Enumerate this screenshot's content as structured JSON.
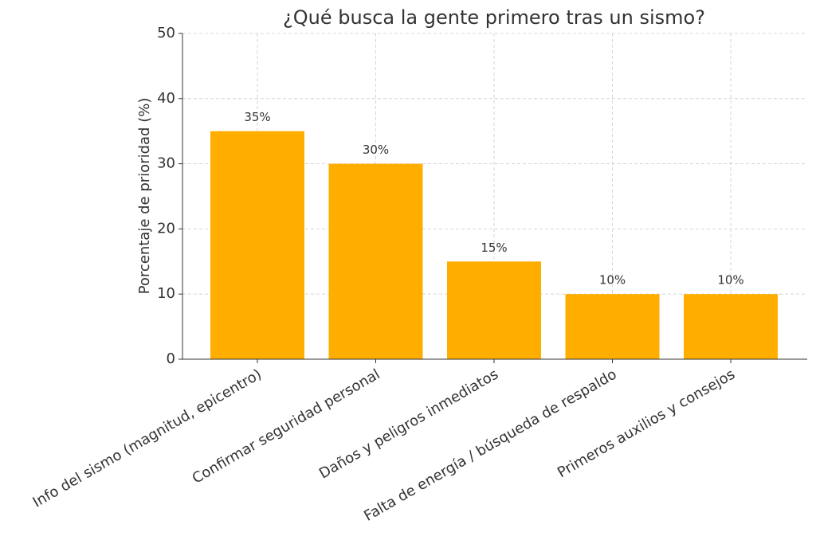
{
  "chart_data": {
    "type": "bar",
    "title": "¿Qué busca la gente primero tras un sismo?",
    "y_label": "Porcentaje de prioridad (%)",
    "categories": [
      "Info del sismo (magnitud, epicentro)",
      "Confirmar seguridad personal",
      "Daños y peligros inmediatos",
      "Falta de energía / búsqueda de respaldo",
      "Primeros auxilios y consejos"
    ],
    "values": [
      35,
      30,
      15,
      10,
      10
    ],
    "value_labels": [
      "35%",
      "30%",
      "15%",
      "10%",
      "10%"
    ],
    "color": "#ffae00",
    "ylim": [
      0,
      50
    ],
    "yticks": [
      0,
      10,
      20,
      30,
      40,
      50
    ],
    "grid": true
  }
}
